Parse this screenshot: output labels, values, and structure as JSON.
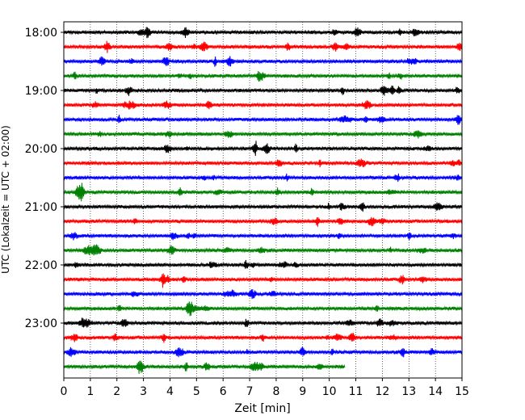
{
  "chart_data": {
    "type": "line",
    "subtype": "seismogram-helicorder",
    "xlabel": "Zeit  [min]",
    "ylabel": "UTC (Lokalzeit = UTC + 02:00)",
    "xlim": [
      0,
      15
    ],
    "x_ticks": [
      0,
      1,
      2,
      3,
      4,
      5,
      6,
      7,
      8,
      9,
      10,
      11,
      12,
      13,
      14,
      15
    ],
    "y_ticks": [
      {
        "label": "18:00",
        "row": 0
      },
      {
        "label": "19:00",
        "row": 4
      },
      {
        "label": "20:00",
        "row": 8
      },
      {
        "label": "21:00",
        "row": 12
      },
      {
        "label": "22:00",
        "row": 16
      },
      {
        "label": "23:00",
        "row": 20
      }
    ],
    "grid": {
      "x": "dotted-vertical",
      "y": false
    },
    "trace_colors": [
      "#000000",
      "#ff0000",
      "#0000ff",
      "#008000"
    ],
    "rows": [
      {
        "start": "18:00",
        "end_min": 15
      },
      {
        "start": "18:15",
        "end_min": 15
      },
      {
        "start": "18:30",
        "end_min": 15
      },
      {
        "start": "18:45",
        "end_min": 15
      },
      {
        "start": "19:00",
        "end_min": 15
      },
      {
        "start": "19:15",
        "end_min": 15
      },
      {
        "start": "19:30",
        "end_min": 15
      },
      {
        "start": "19:45",
        "end_min": 15
      },
      {
        "start": "20:00",
        "end_min": 15
      },
      {
        "start": "20:15",
        "end_min": 15
      },
      {
        "start": "20:30",
        "end_min": 15
      },
      {
        "start": "20:45",
        "end_min": 15
      },
      {
        "start": "21:00",
        "end_min": 15
      },
      {
        "start": "21:15",
        "end_min": 15
      },
      {
        "start": "21:30",
        "end_min": 15
      },
      {
        "start": "21:45",
        "end_min": 15
      },
      {
        "start": "22:00",
        "end_min": 15
      },
      {
        "start": "22:15",
        "end_min": 15
      },
      {
        "start": "22:30",
        "end_min": 15
      },
      {
        "start": "22:45",
        "end_min": 15
      },
      {
        "start": "23:00",
        "end_min": 15
      },
      {
        "start": "23:15",
        "end_min": 15
      },
      {
        "start": "23:30",
        "end_min": 15
      },
      {
        "start": "23:45",
        "end_min": 10.6
      }
    ]
  }
}
